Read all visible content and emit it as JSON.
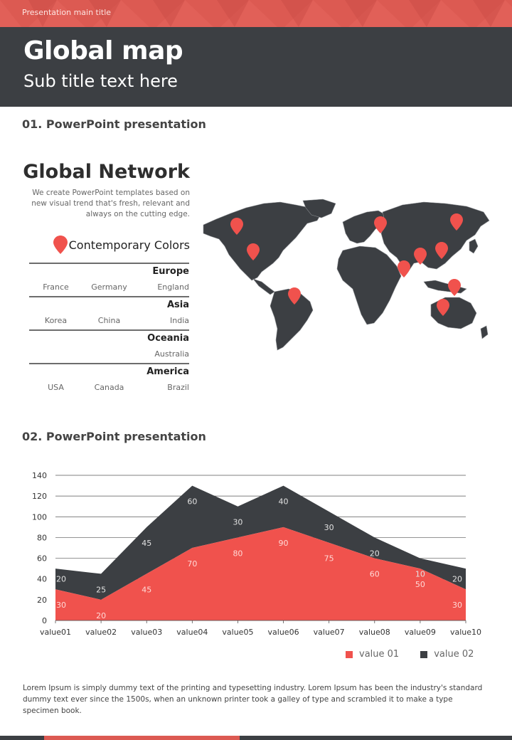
{
  "header": {
    "presentation_title": "Presentation main title",
    "main_title": "Global map",
    "sub_title": "Sub title text here"
  },
  "section1": {
    "heading": "01. PowerPoint presentation",
    "network_title": "Global Network",
    "network_desc": "We create PowerPoint templates based on new visual trend that's fresh, relevant and always on the cutting edge.",
    "colors_label": "Contemporary Colors",
    "regions": [
      {
        "name": "Europe",
        "countries": [
          "France",
          "Germany",
          "England"
        ]
      },
      {
        "name": "Asia",
        "countries": [
          "Korea",
          "China",
          "India"
        ]
      },
      {
        "name": "Oceania",
        "countries": [
          "",
          "",
          "Australia"
        ]
      },
      {
        "name": "America",
        "countries": [
          "USA",
          "Canada",
          "Brazil"
        ]
      }
    ]
  },
  "section2": {
    "heading": "02. PowerPoint presentation"
  },
  "chart_data": {
    "type": "area",
    "stacked": true,
    "categories": [
      "value01",
      "value02",
      "value03",
      "value04",
      "value05",
      "value06",
      "value07",
      "value08",
      "value09",
      "value10"
    ],
    "series": [
      {
        "name": "value 01",
        "values": [
          30,
          20,
          45,
          70,
          80,
          90,
          75,
          60,
          50,
          30
        ],
        "color": "#f0524d"
      },
      {
        "name": "value 02",
        "values": [
          20,
          25,
          45,
          60,
          30,
          40,
          30,
          20,
          10,
          20
        ],
        "color": "#3c3f43"
      }
    ],
    "ylim": [
      0,
      140
    ],
    "yticks": [
      0,
      20,
      40,
      60,
      80,
      100,
      120,
      140
    ],
    "grid": true,
    "legend": "bottom-right"
  },
  "footnote": "Lorem Ipsum is simply dummy text of the printing and typesetting industry. Lorem Ipsum has been the industry's standard dummy text ever since the 1500s, when an unknown printer took a galley of type and scrambled it to make a type specimen book.",
  "colors": {
    "accent": "#f0524d",
    "dark": "#3c3f43",
    "strip": "#dc5a52"
  }
}
